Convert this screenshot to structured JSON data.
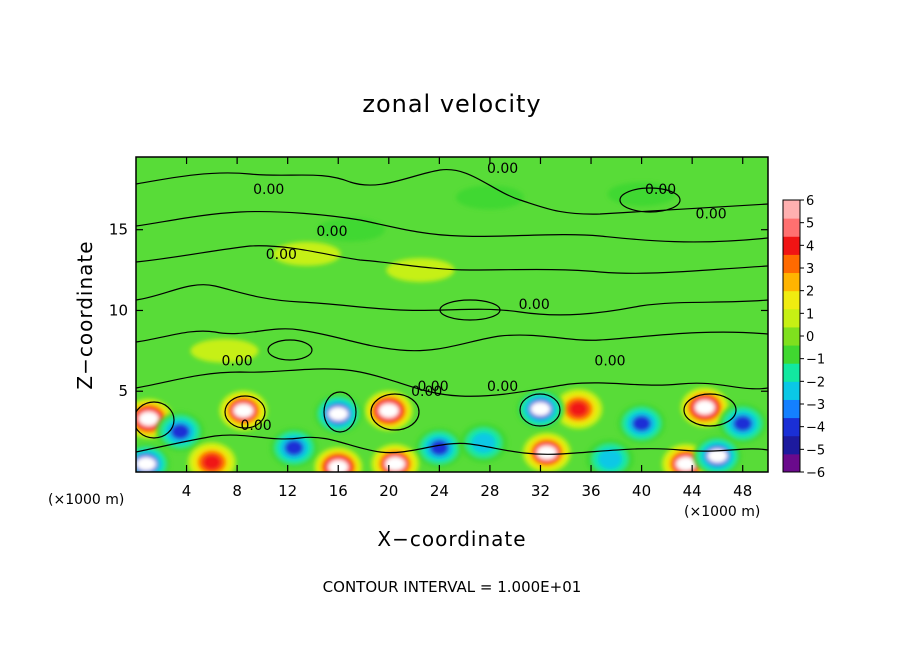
{
  "chart_data": {
    "type": "heatmap",
    "title": "zonal velocity",
    "xlabel": "X−coordinate",
    "ylabel": "Z−coordinate",
    "x_units": "(×1000 m)",
    "y_units": "(×1000 m)",
    "xlim": [
      0,
      50
    ],
    "ylim": [
      0,
      19.5
    ],
    "x_ticks": [
      4,
      8,
      12,
      16,
      20,
      24,
      28,
      32,
      36,
      40,
      44,
      48
    ],
    "y_ticks": [
      5,
      10,
      15
    ],
    "colorbar": {
      "ticks": [
        "6",
        "5",
        "4",
        "3",
        "2",
        "1",
        "0",
        "−1",
        "−2",
        "−3",
        "−4",
        "−5",
        "−6"
      ],
      "range": [
        -6,
        6
      ],
      "colors": [
        "#6a0a8c",
        "#1d1a9e",
        "#1a2fd6",
        "#1480ff",
        "#0ac8e6",
        "#12e8a0",
        "#40d830",
        "#7fe01e",
        "#c6f014",
        "#f0ec10",
        "#ffb400",
        "#ff6a00",
        "#f01414",
        "#ff7070",
        "#ffb0b0"
      ]
    },
    "contour_labels": [
      "0.00",
      "0.00",
      "0.00",
      "0.00",
      "0.00",
      "0.00",
      "0.00",
      "0.00",
      "0.00",
      "0.00",
      "0.00",
      "0.00",
      "0.00"
    ],
    "contour_label_positions": [
      {
        "x": 10.5,
        "y": 17.2
      },
      {
        "x": 29.0,
        "y": 18.5
      },
      {
        "x": 41.5,
        "y": 17.2
      },
      {
        "x": 45.5,
        "y": 15.7
      },
      {
        "x": 15.5,
        "y": 14.6
      },
      {
        "x": 11.5,
        "y": 13.2
      },
      {
        "x": 31.5,
        "y": 10.1
      },
      {
        "x": 8.0,
        "y": 6.6
      },
      {
        "x": 37.5,
        "y": 6.6
      },
      {
        "x": 23.5,
        "y": 5.0
      },
      {
        "x": 29.0,
        "y": 5.0
      },
      {
        "x": 9.5,
        "y": 2.6
      },
      {
        "x": 23.0,
        "y": 4.7
      }
    ],
    "features": [
      {
        "x": 1.0,
        "y": 3.3,
        "v": 6
      },
      {
        "x": 8.5,
        "y": 3.8,
        "v": 5
      },
      {
        "x": 20.0,
        "y": 3.8,
        "v": 6
      },
      {
        "x": 35.0,
        "y": 3.9,
        "v": 4
      },
      {
        "x": 45.0,
        "y": 4.0,
        "v": 6
      },
      {
        "x": 16.0,
        "y": 3.6,
        "v": -5
      },
      {
        "x": 32.0,
        "y": 3.9,
        "v": -5
      },
      {
        "x": 3.5,
        "y": 2.5,
        "v": -4
      },
      {
        "x": 12.5,
        "y": 1.5,
        "v": -4
      },
      {
        "x": 24.0,
        "y": 1.5,
        "v": -4
      },
      {
        "x": 27.5,
        "y": 1.8,
        "v": -3
      },
      {
        "x": 40.0,
        "y": 3.0,
        "v": -4
      },
      {
        "x": 48.0,
        "y": 3.0,
        "v": -4
      },
      {
        "x": 0.8,
        "y": 0.5,
        "v": -5
      },
      {
        "x": 6.0,
        "y": 0.6,
        "v": 4
      },
      {
        "x": 16.0,
        "y": 0.3,
        "v": 6
      },
      {
        "x": 20.5,
        "y": 0.5,
        "v": 5
      },
      {
        "x": 32.5,
        "y": 1.2,
        "v": 5
      },
      {
        "x": 43.5,
        "y": 0.5,
        "v": 5
      },
      {
        "x": 46.0,
        "y": 1.0,
        "v": -5
      },
      {
        "x": 37.5,
        "y": 0.8,
        "v": -3
      },
      {
        "x": 13.5,
        "y": 13.5,
        "v": 1
      },
      {
        "x": 22.5,
        "y": 12.5,
        "v": 1
      },
      {
        "x": 7.0,
        "y": 7.5,
        "v": 1
      },
      {
        "x": 28.0,
        "y": 17.0,
        "v": -1
      },
      {
        "x": 40.0,
        "y": 17.2,
        "v": -1
      },
      {
        "x": 17.0,
        "y": 15.0,
        "v": -1
      }
    ]
  },
  "footer": "CONTOUR INTERVAL = 1.000E+01"
}
